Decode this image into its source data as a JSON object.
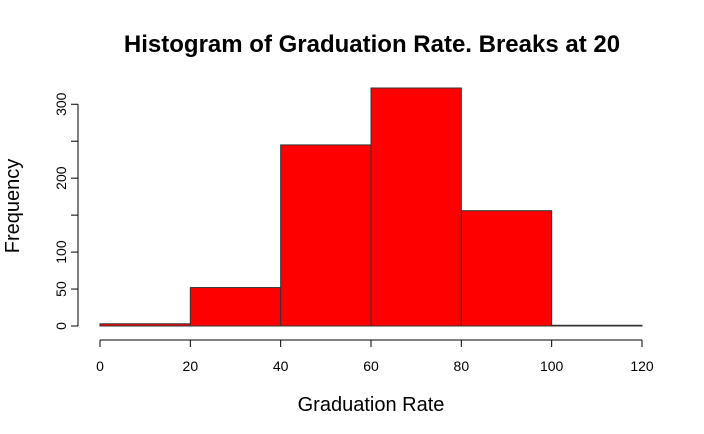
{
  "chart_data": {
    "type": "bar",
    "title": "Histogram of Graduation Rate. Breaks at 20",
    "xlabel": "Graduation Rate",
    "ylabel": "Frequency",
    "bin_edges": [
      0,
      20,
      40,
      60,
      80,
      100,
      120
    ],
    "values": [
      3,
      52,
      245,
      322,
      156,
      1
    ],
    "xlim": [
      0,
      120
    ],
    "ylim": [
      0,
      322
    ],
    "x_ticks": [
      "0",
      "20",
      "40",
      "60",
      "80",
      "100",
      "120"
    ],
    "y_ticks": [
      "0",
      "50",
      "100",
      "200",
      "300"
    ],
    "grid": false,
    "bar_color": "#ff0000"
  }
}
